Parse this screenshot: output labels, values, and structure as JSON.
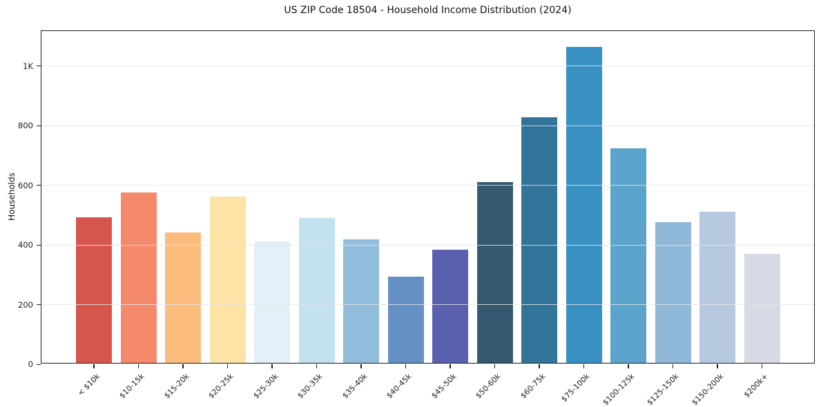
{
  "chart_data": {
    "type": "bar",
    "title": "US ZIP Code 18504 - Household Income Distribution (2024)",
    "xlabel": "",
    "ylabel": "Households",
    "categories": [
      "< $10k",
      "$10-15k",
      "$15-20k",
      "$20-25k",
      "$25-30k",
      "$30-35k",
      "$35-40k",
      "$40-45k",
      "$45-50k",
      "$50-60k",
      "$60-75k",
      "$75-100k",
      "$100-125k",
      "$125-150k",
      "$150-200k",
      "$200k+"
    ],
    "values": [
      488,
      572,
      437,
      557,
      408,
      486,
      414,
      289,
      379,
      605,
      824,
      1060,
      719,
      472,
      507,
      365
    ],
    "bar_colors": [
      "#d6564e",
      "#f4896c",
      "#fbbc7d",
      "#fde3a6",
      "#e3f0f7",
      "#c3e1ee",
      "#92bcdc",
      "#6590c5",
      "#5a5fae",
      "#34596e",
      "#33749b",
      "#3890c3",
      "#5ba4cc",
      "#90b9d9",
      "#b6c9e1",
      "#d7d9e5"
    ],
    "y_ticks": [
      {
        "value": 0,
        "label": "0"
      },
      {
        "value": 200,
        "label": "200"
      },
      {
        "value": 400,
        "label": "400"
      },
      {
        "value": 600,
        "label": "600"
      },
      {
        "value": 800,
        "label": "800"
      },
      {
        "value": 1000,
        "label": "1K"
      }
    ],
    "ylim": [
      0,
      1117
    ],
    "grid": "horizontal",
    "legend": "none"
  }
}
